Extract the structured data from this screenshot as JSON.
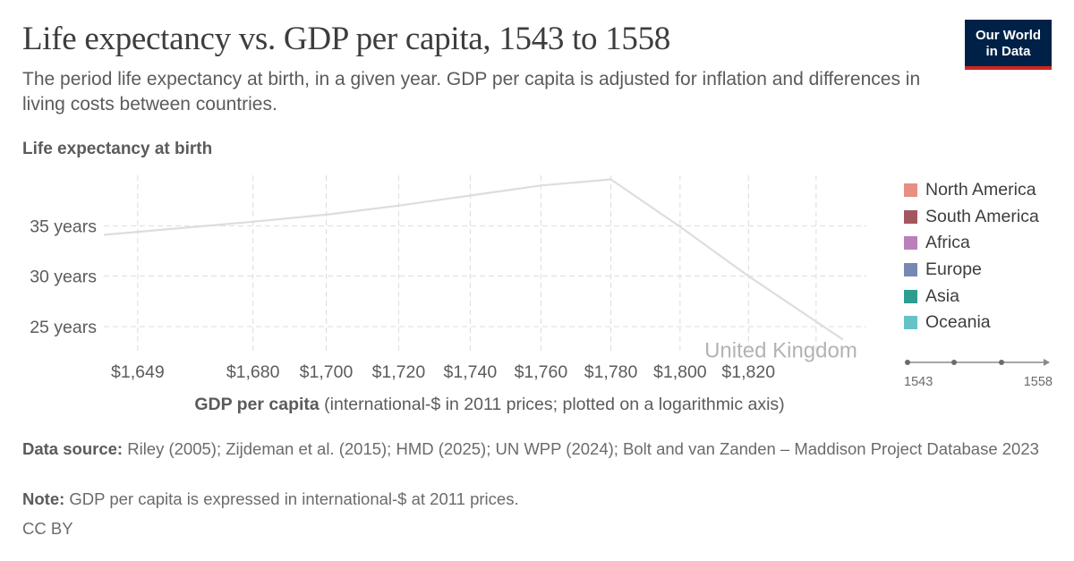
{
  "header": {
    "title": "Life expectancy vs. GDP per capita, 1543 to 1558",
    "subtitle": "The period life expectancy at birth, in a given year. GDP per capita is adjusted for inflation and differences in living costs between countries.",
    "logo_line1": "Our World",
    "logo_line2": "in Data"
  },
  "chart_data": {
    "type": "line",
    "title": "Life expectancy vs. GDP per capita, 1543 to 1558",
    "ylabel": "Life expectancy at birth",
    "xlabel_bold": "GDP per capita",
    "xlabel_rest": " (international-$ in 2011 prices; plotted on a logarithmic axis)",
    "x_scale": "log",
    "xlim": [
      1640,
      1855
    ],
    "ylim": [
      22.6,
      40
    ],
    "x_ticks": [
      {
        "value": 1649,
        "label": "$1,649"
      },
      {
        "value": 1680,
        "label": "$1,680"
      },
      {
        "value": 1700,
        "label": "$1,700"
      },
      {
        "value": 1720,
        "label": "$1,720"
      },
      {
        "value": 1740,
        "label": "$1,740"
      },
      {
        "value": 1760,
        "label": "$1,760"
      },
      {
        "value": 1780,
        "label": "$1,780"
      },
      {
        "value": 1800,
        "label": "$1,800"
      },
      {
        "value": 1820,
        "label": "$1,820"
      },
      {
        "value": 1840,
        "label": ""
      }
    ],
    "y_ticks": [
      {
        "value": 25,
        "label": "25 years"
      },
      {
        "value": 30,
        "label": "30 years"
      },
      {
        "value": 35,
        "label": "35 years"
      }
    ],
    "grid": true,
    "series": [
      {
        "name": "United Kingdom",
        "color": "#dddddd",
        "points": [
          {
            "x": 1640,
            "y": 34.1
          },
          {
            "x": 1680,
            "y": 35.4
          },
          {
            "x": 1700,
            "y": 36.1
          },
          {
            "x": 1720,
            "y": 37.0
          },
          {
            "x": 1740,
            "y": 38.0
          },
          {
            "x": 1760,
            "y": 39.0
          },
          {
            "x": 1780,
            "y": 39.6
          },
          {
            "x": 1800,
            "y": 34.9
          },
          {
            "x": 1820,
            "y": 30.0
          },
          {
            "x": 1848,
            "y": 23.7
          }
        ]
      }
    ],
    "legend_position": "right"
  },
  "legend": {
    "items": [
      {
        "label": "North America",
        "color": "#e78f82"
      },
      {
        "label": "South America",
        "color": "#a2575f"
      },
      {
        "label": "Africa",
        "color": "#bb7fba"
      },
      {
        "label": "Europe",
        "color": "#7789b3"
      },
      {
        "label": "Asia",
        "color": "#2c9d8f"
      },
      {
        "label": "Oceania",
        "color": "#65c3c8"
      }
    ]
  },
  "timeline": {
    "start_label": "1543",
    "end_label": "1558"
  },
  "footer": {
    "source_label": "Data source:",
    "source_text": " Riley (2005); Zijdeman et al. (2015); HMD (2025); UN WPP (2024); Bolt and van Zanden – Maddison Project Database 2023",
    "note_label": "Note:",
    "note_text": " GDP per capita is expressed in international-$ at 2011 prices.",
    "license": "CC BY"
  }
}
